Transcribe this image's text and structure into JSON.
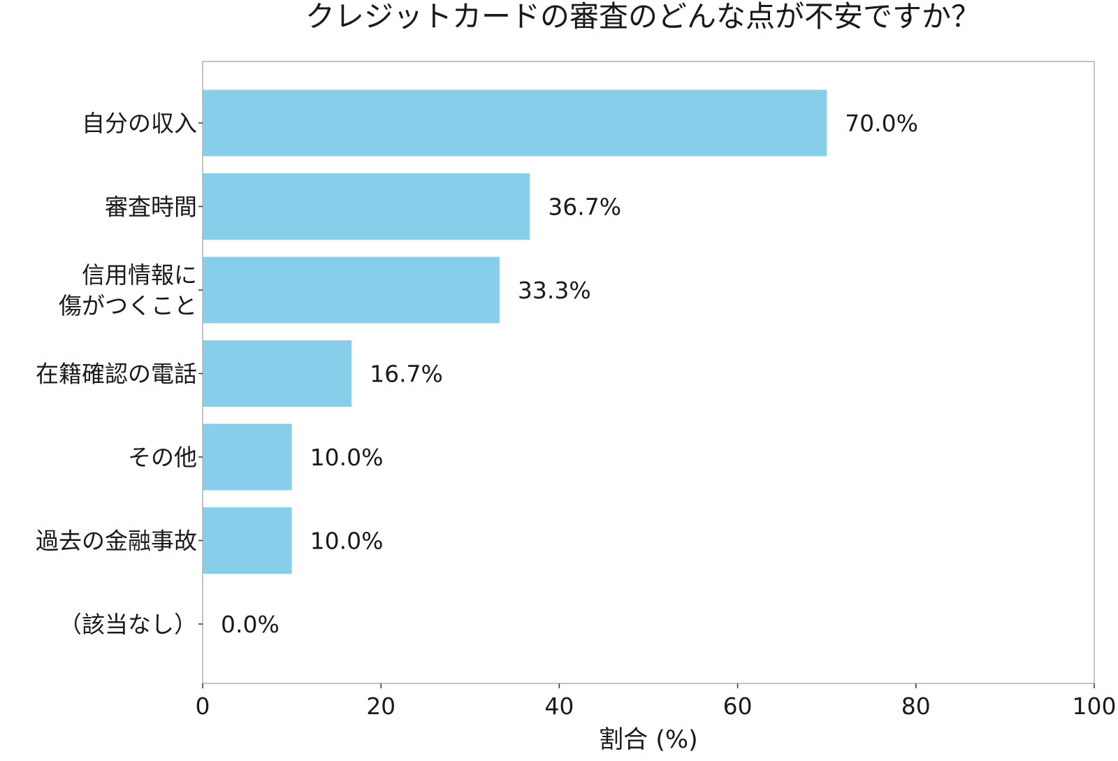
{
  "chart_data": {
    "type": "bar",
    "orientation": "horizontal",
    "title": "クレジットカードの審査のどんな点が不安ですか？",
    "xlabel": "割合 (%)",
    "ylabel": "",
    "xlim": [
      0,
      100
    ],
    "xticks": [
      0,
      20,
      40,
      60,
      80,
      100
    ],
    "categories": [
      [
        "自分の収入"
      ],
      [
        "審査時間"
      ],
      [
        "信用情報に",
        "傷がつくこと"
      ],
      [
        "在籍確認の電話"
      ],
      [
        "その他"
      ],
      [
        "過去の金融事故"
      ],
      [
        "（該当なし）"
      ]
    ],
    "values": [
      70.0,
      36.7,
      33.3,
      16.7,
      10.0,
      10.0,
      0.0
    ],
    "value_labels": [
      "70.0%",
      "36.7%",
      "33.3%",
      "16.7%",
      "10.0%",
      "10.0%",
      "0.0%"
    ],
    "bar_color": "#87CEEB",
    "frame_color": "#b0b0b0",
    "grid": false,
    "legend": "none"
  }
}
